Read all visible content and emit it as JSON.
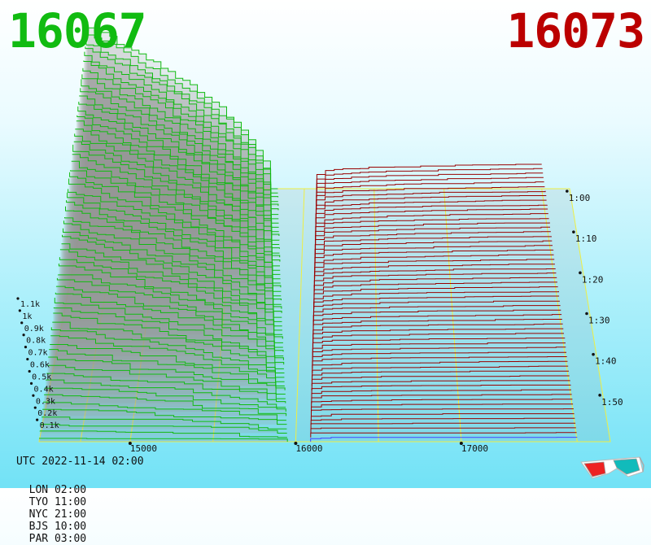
{
  "header": {
    "bid_price": "16067",
    "ask_price": "16073",
    "bid_color": "#11bb11",
    "ask_color": "#bb0000"
  },
  "footer": {
    "utc_label": "UTC 2022-11-14 02:00",
    "zones": [
      "LON 02:00",
      "TYO 11:00",
      "NYC 21:00",
      "BJS 10:00",
      "PAR 03:00"
    ]
  },
  "icons": {
    "glasses": "3d-glasses-icon"
  },
  "chart_data": {
    "type": "area",
    "title": "",
    "x_axis": {
      "ticks": [
        15000,
        16000,
        17000
      ],
      "tick_labels": [
        "15000",
        "16000",
        "17000"
      ]
    },
    "depth_axis": {
      "tick_labels": [
        "0.1k",
        "0.2k",
        "0.3k",
        "0.4k",
        "0.5k",
        "0.6k",
        "0.7k",
        "0.8k",
        "0.9k",
        "1k",
        "1.1k"
      ],
      "range": [
        0,
        1.1
      ]
    },
    "time_axis": {
      "tick_labels": [
        "1:00",
        "1:10",
        "1:20",
        "1:30",
        "1:40",
        "1:50"
      ]
    },
    "mid_price": 16070,
    "series": [
      {
        "name": "",
        "color": "#11bb11"
      },
      {
        "name": "",
        "color": "#990000"
      }
    ],
    "colors": {
      "bids": "#11bb11",
      "asks": "#990000",
      "grid": "#eeee44",
      "latest": "#4444ff"
    }
  }
}
